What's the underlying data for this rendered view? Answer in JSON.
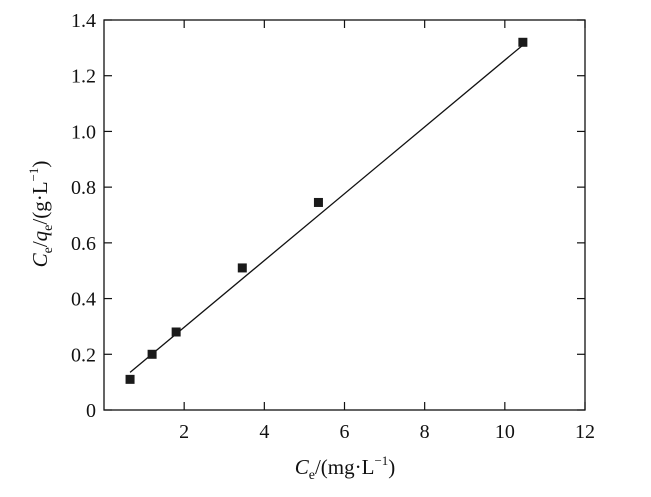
{
  "chart_data": {
    "type": "scatter",
    "title": "",
    "xlabel": {
      "main": "C",
      "sub": "e",
      "unit_prefix": "/(mg·L",
      "sup": "−1",
      "unit_suffix": ")"
    },
    "ylabel": {
      "main1": "C",
      "sub1": "e",
      "slash1": "/",
      "main2": "q",
      "sub2": "e",
      "unit_prefix": "/(g·L",
      "sup": "−1",
      "unit_suffix": ")"
    },
    "xlim": [
      0,
      12
    ],
    "ylim": [
      0,
      1.4
    ],
    "x_ticks": [
      2,
      4,
      6,
      8,
      10,
      12
    ],
    "x_tick_labels": [
      "2",
      "4",
      "6",
      "8",
      "10",
      "12"
    ],
    "y_ticks": [
      0,
      0.2,
      0.4,
      0.6,
      0.8,
      1.0,
      1.2,
      1.4
    ],
    "y_tick_labels": [
      "0",
      "0.2",
      "0.4",
      "0.6",
      "0.8",
      "1.0",
      "1.2",
      "1.4"
    ],
    "grid": false,
    "series": [
      {
        "marker": "square",
        "x": [
          0.65,
          1.2,
          1.8,
          3.45,
          5.35,
          10.45
        ],
        "y": [
          0.11,
          0.2,
          0.28,
          0.51,
          0.745,
          1.32
        ]
      }
    ],
    "fit_line": {
      "x": [
        0.65,
        10.45
      ],
      "y": [
        0.135,
        1.31
      ]
    }
  }
}
